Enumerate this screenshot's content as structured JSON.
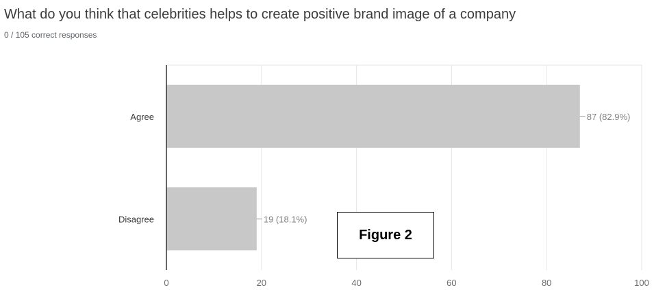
{
  "header": {
    "title": "What do you think that celebrities helps to create positive brand image of a company",
    "subtitle": "0 / 105 correct responses"
  },
  "figure_label": "Figure 2",
  "colors": {
    "bar": "#c8c8c8",
    "axis": "#333333",
    "grid": "#e6e6e6",
    "label": "#3c3c3c",
    "data_label": "#808080"
  },
  "chart_data": {
    "type": "bar",
    "orientation": "horizontal",
    "categories": [
      "Agree",
      "Disagree"
    ],
    "values": [
      87,
      19
    ],
    "data_labels": [
      "87 (82.9%)",
      "19 (18.1%)"
    ],
    "xlim": [
      0,
      100
    ],
    "xticks": [
      0,
      20,
      40,
      60,
      80,
      100
    ],
    "grid": true
  }
}
